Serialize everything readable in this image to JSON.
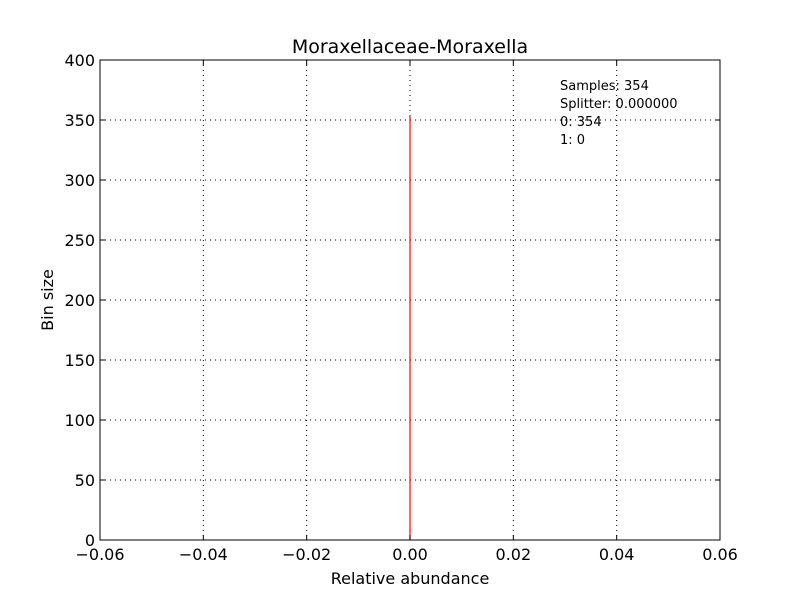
{
  "chart_data": {
    "type": "bar",
    "title": "Moraxellaceae-Moraxella",
    "xlabel": "Relative abundance",
    "ylabel": "Bin size",
    "xlim": [
      -0.06,
      0.06
    ],
    "ylim": [
      0,
      400
    ],
    "xticks": [
      -0.06,
      -0.04,
      -0.02,
      0.0,
      0.02,
      0.04,
      0.06
    ],
    "xtick_labels": [
      "−0.06",
      "−0.04",
      "−0.02",
      "0.00",
      "0.02",
      "0.04",
      "0.06"
    ],
    "yticks": [
      0,
      50,
      100,
      150,
      200,
      250,
      300,
      350,
      400
    ],
    "ytick_labels": [
      "0",
      "50",
      "100",
      "150",
      "200",
      "250",
      "300",
      "350",
      "400"
    ],
    "grid": true,
    "bars": [
      {
        "x": 0.0,
        "value": 354,
        "color": "#ff0000"
      }
    ],
    "annotations": [
      "Samples: 354",
      "Splitter: 0.000000",
      "0: 354",
      "1: 0"
    ]
  }
}
